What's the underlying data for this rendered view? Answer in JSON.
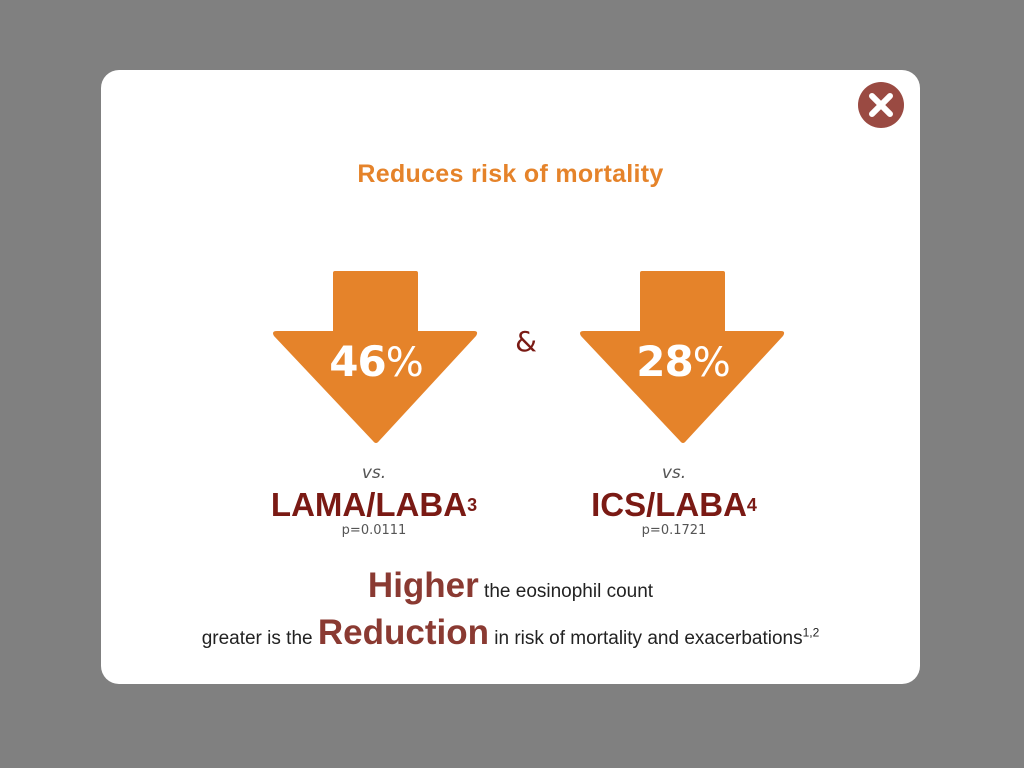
{
  "modal": {
    "title": "Reduces risk of mortality",
    "ampersand": "&",
    "close_icon": "close-x-icon",
    "accent_color": "#e5832a",
    "dark_red": "#7a1a14",
    "comparisons": [
      {
        "percent": "46",
        "percent_sign": "%",
        "vs": "vs.",
        "drug": "LAMA/LABA",
        "ref": "3",
        "p_value": "p=0.0111"
      },
      {
        "percent": "28",
        "percent_sign": "%",
        "vs": "vs.",
        "drug": "ICS/LABA",
        "ref": "4",
        "p_value": "p=0.1721"
      }
    ],
    "footer": {
      "word1": "Higher",
      "text1": " the eosinophil count",
      "text2a": "greater is the ",
      "word2": "Reduction",
      "text2b": " in risk of mortality and exacerbations",
      "refs": "1,2"
    }
  }
}
